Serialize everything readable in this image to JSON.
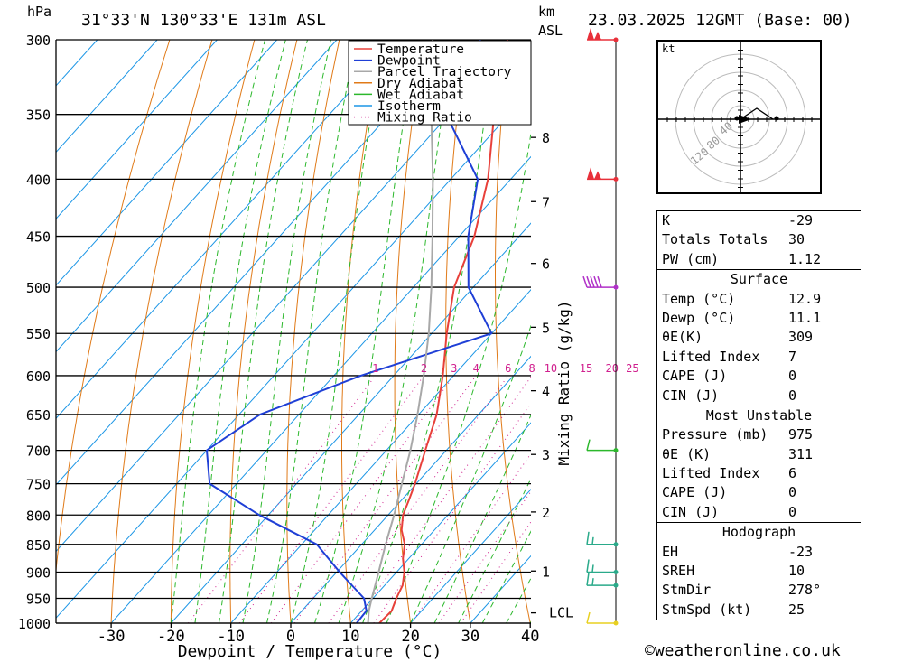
{
  "header": {
    "location": "31°33'N  130°33'E  131m  ASL",
    "datetime": "23.03.2025  12GMT  (Base: 00)",
    "pressure_unit": "hPa",
    "height_unit_km": "km",
    "height_unit_asl": "ASL"
  },
  "chart_data": {
    "type": "line",
    "title": "",
    "xlabel": "Dewpoint / Temperature (°C)",
    "ylabel": "hPa",
    "y2label": "Mixing Ratio (g/kg)",
    "xlim": [
      -40,
      40
    ],
    "ylim": [
      1000,
      300
    ],
    "y_scale": "log-pressure",
    "skew": true,
    "pressure_ticks": [
      300,
      350,
      400,
      450,
      500,
      550,
      600,
      650,
      700,
      750,
      800,
      850,
      900,
      950,
      1000
    ],
    "temperature_ticks": [
      -30,
      -20,
      -10,
      0,
      10,
      20,
      30,
      40
    ],
    "height_ticks": [
      {
        "km": "8",
        "p": 367
      },
      {
        "km": "7",
        "p": 419
      },
      {
        "km": "6",
        "p": 476
      },
      {
        "km": "5",
        "p": 543
      },
      {
        "km": "4",
        "p": 619
      },
      {
        "km": "3",
        "p": 706
      },
      {
        "km": "2",
        "p": 795
      },
      {
        "km": "1",
        "p": 898
      }
    ],
    "lcl": {
      "label": "LCL",
      "p": 979
    },
    "mixing_ratio_labels": [
      "1",
      "2",
      "3",
      "4",
      "6",
      "8",
      "10",
      "15",
      "20",
      "25"
    ],
    "mixing_ratio_values": [
      1,
      2,
      3,
      4,
      6,
      8,
      10,
      15,
      20,
      25
    ],
    "legend": {
      "placement": "top-center",
      "entries": [
        {
          "name": "Temperature",
          "color": "#e8403a",
          "style": "solid"
        },
        {
          "name": "Dewpoint",
          "color": "#1f3fd6",
          "style": "solid"
        },
        {
          "name": "Parcel Trajectory",
          "color": "#a8a8a8",
          "style": "solid"
        },
        {
          "name": "Dry Adiabat",
          "color": "#e07a18",
          "style": "solid"
        },
        {
          "name": "Wet Adiabat",
          "color": "#2cb82c",
          "style": "solid"
        },
        {
          "name": "Isotherm",
          "color": "#1c96e6",
          "style": "solid"
        },
        {
          "name": "Mixing Ratio",
          "color": "#d0208e",
          "style": "dotted"
        }
      ]
    },
    "series": [
      {
        "name": "Temperature",
        "color": "#e8403a",
        "points": [
          {
            "p": 1000,
            "t": 14.8
          },
          {
            "p": 975,
            "t": 15.0
          },
          {
            "p": 950,
            "t": 13.9
          },
          {
            "p": 925,
            "t": 13.0
          },
          {
            "p": 900,
            "t": 11.3
          },
          {
            "p": 875,
            "t": 9.0
          },
          {
            "p": 850,
            "t": 7.2
          },
          {
            "p": 825,
            "t": 4.5
          },
          {
            "p": 800,
            "t": 2.5
          },
          {
            "p": 775,
            "t": 1.2
          },
          {
            "p": 750,
            "t": -0.2
          },
          {
            "p": 700,
            "t": -3.5
          },
          {
            "p": 650,
            "t": -7.0
          },
          {
            "p": 600,
            "t": -11.8
          },
          {
            "p": 550,
            "t": -17.5
          },
          {
            "p": 500,
            "t": -23.2
          },
          {
            "p": 450,
            "t": -27.5
          },
          {
            "p": 400,
            "t": -33.8
          },
          {
            "p": 350,
            "t": -42.5
          },
          {
            "p": 300,
            "t": -51.5
          }
        ]
      },
      {
        "name": "Dewpoint",
        "color": "#1f3fd6",
        "points": [
          {
            "p": 1000,
            "t": 11.0
          },
          {
            "p": 975,
            "t": 10.8
          },
          {
            "p": 950,
            "t": 8.5
          },
          {
            "p": 900,
            "t": 0.5
          },
          {
            "p": 850,
            "t": -7.5
          },
          {
            "p": 800,
            "t": -21.5
          },
          {
            "p": 750,
            "t": -34.5
          },
          {
            "p": 700,
            "t": -40.0
          },
          {
            "p": 650,
            "t": -36.5
          },
          {
            "p": 600,
            "t": -25.5
          },
          {
            "p": 550,
            "t": -10.0
          },
          {
            "p": 500,
            "t": -20.8
          },
          {
            "p": 450,
            "t": -28.5
          },
          {
            "p": 400,
            "t": -35.5
          },
          {
            "p": 350,
            "t": -50.5
          },
          {
            "p": 300,
            "t": -56.0
          }
        ]
      },
      {
        "name": "Parcel Trajectory",
        "color": "#a8a8a8",
        "points": [
          {
            "p": 1000,
            "t": 12.9
          },
          {
            "p": 975,
            "t": 11.2
          },
          {
            "p": 950,
            "t": 9.8
          },
          {
            "p": 900,
            "t": 7.0
          },
          {
            "p": 850,
            "t": 4.0
          },
          {
            "p": 800,
            "t": 1.0
          },
          {
            "p": 750,
            "t": -2.4
          },
          {
            "p": 700,
            "t": -6.0
          },
          {
            "p": 650,
            "t": -10.2
          },
          {
            "p": 600,
            "t": -15.0
          },
          {
            "p": 550,
            "t": -20.5
          },
          {
            "p": 500,
            "t": -27.0
          },
          {
            "p": 450,
            "t": -34.5
          },
          {
            "p": 400,
            "t": -43.0
          },
          {
            "p": 350,
            "t": -53.0
          },
          {
            "p": 300,
            "t": -64.0
          }
        ]
      }
    ],
    "wind_barbs": [
      {
        "p": 300,
        "color": "#e8303a",
        "style": "pennants"
      },
      {
        "p": 400,
        "color": "#e8303a",
        "style": "pennants"
      },
      {
        "p": 500,
        "color": "#b030c8",
        "style": "many-barbs"
      },
      {
        "p": 700,
        "color": "#2cb82c",
        "style": "barb"
      },
      {
        "p": 850,
        "color": "#2aaa8a",
        "style": "barbs"
      },
      {
        "p": 900,
        "color": "#2aaa8a",
        "style": "barbs"
      },
      {
        "p": 925,
        "color": "#2aaa8a",
        "style": "barbs"
      },
      {
        "p": 1000,
        "color": "#e8d020",
        "style": "barb"
      }
    ]
  },
  "hodograph": {
    "unit": "kt",
    "ring_labels": [
      "40",
      "80",
      "120"
    ]
  },
  "indices": [
    {
      "label": "K",
      "value": "-29"
    },
    {
      "label": "Totals Totals",
      "value": "30"
    },
    {
      "label": "PW (cm)",
      "value": "1.12"
    }
  ],
  "surface": {
    "title": "Surface",
    "rows": [
      {
        "label": "Temp (°C)",
        "value": "12.9"
      },
      {
        "label": "Dewp (°C)",
        "value": "11.1"
      },
      {
        "label": "θE(K)",
        "value": "309"
      },
      {
        "label": "Lifted Index",
        "value": "7"
      },
      {
        "label": "CAPE (J)",
        "value": "0"
      },
      {
        "label": "CIN (J)",
        "value": "0"
      }
    ]
  },
  "most_unstable": {
    "title": "Most Unstable",
    "rows": [
      {
        "label": "Pressure (mb)",
        "value": "975"
      },
      {
        "label": "θE (K)",
        "value": "311"
      },
      {
        "label": "Lifted Index",
        "value": "6"
      },
      {
        "label": "CAPE (J)",
        "value": "0"
      },
      {
        "label": "CIN (J)",
        "value": "0"
      }
    ]
  },
  "hodograph_table": {
    "title": "Hodograph",
    "rows": [
      {
        "label": "EH",
        "value": "-23"
      },
      {
        "label": "SREH",
        "value": "10"
      },
      {
        "label": "StmDir",
        "value": "278°"
      },
      {
        "label": "StmSpd (kt)",
        "value": "25"
      }
    ]
  },
  "footer": {
    "credit": "©weatheronline.co.uk"
  }
}
